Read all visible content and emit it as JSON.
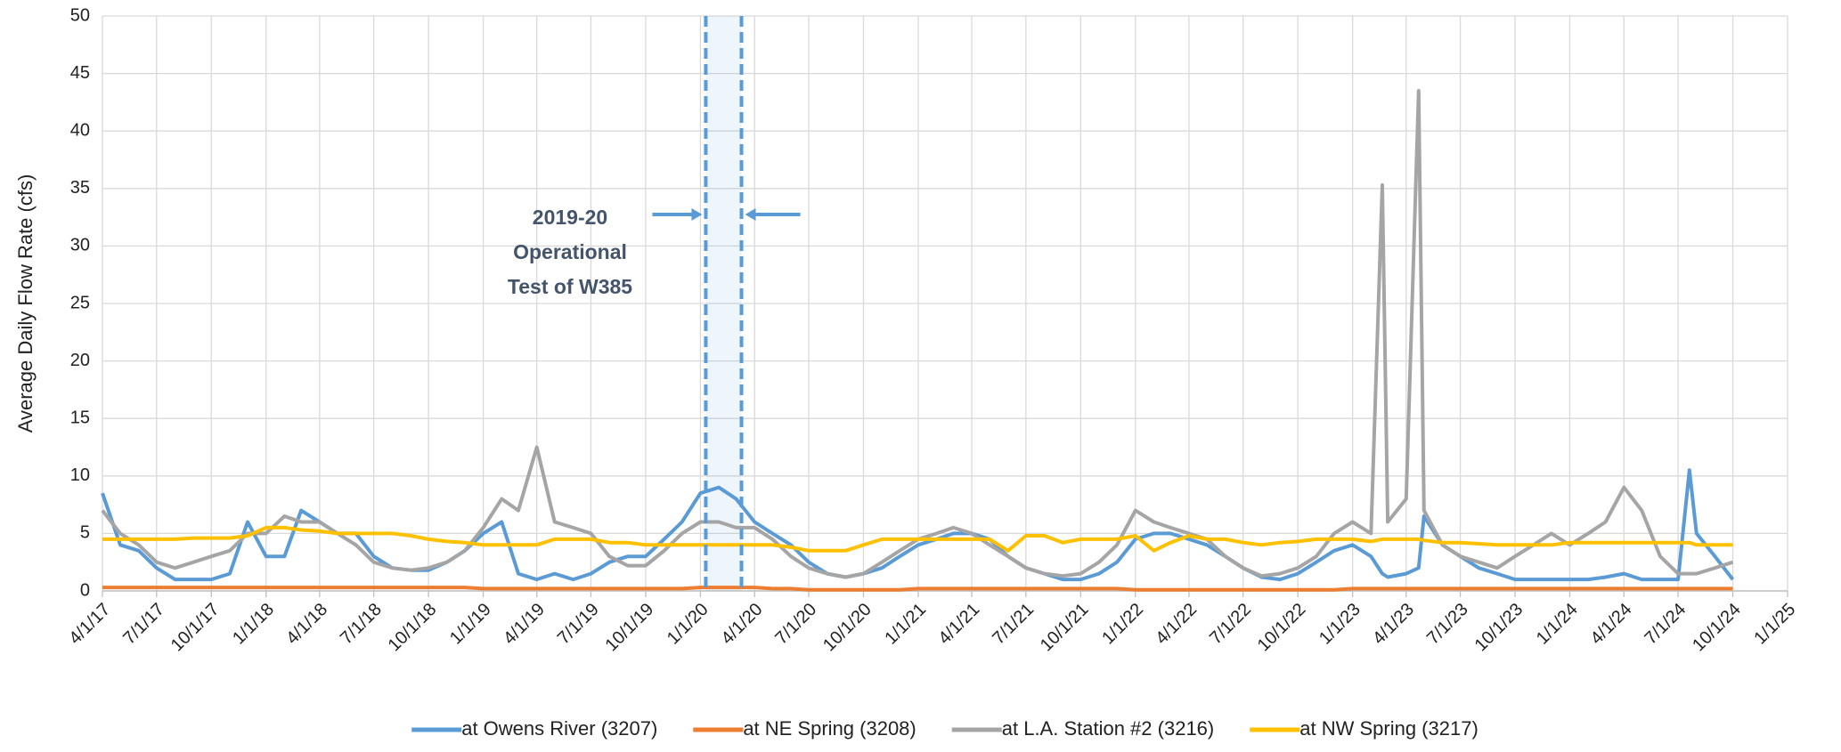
{
  "chart_data": {
    "type": "line",
    "y_label": "Average Daily Flow Rate (cfs)",
    "grid": true,
    "legend": "bottom",
    "ylim": [
      0,
      50
    ],
    "yticks": [
      0,
      5,
      10,
      15,
      20,
      25,
      30,
      35,
      40,
      45,
      50
    ],
    "xlim": [
      "4/1/17",
      "1/1/25"
    ],
    "xticks": [
      "4/1/17",
      "7/1/17",
      "10/1/17",
      "1/1/18",
      "4/1/18",
      "7/1/18",
      "10/1/18",
      "1/1/19",
      "4/1/19",
      "7/1/19",
      "10/1/19",
      "1/1/20",
      "4/1/20",
      "7/1/20",
      "10/1/20",
      "1/1/21",
      "4/1/21",
      "7/1/21",
      "10/1/21",
      "1/1/22",
      "4/1/22",
      "7/1/22",
      "10/1/22",
      "1/1/23",
      "4/1/23",
      "7/1/23",
      "10/1/23",
      "1/1/24",
      "4/1/24",
      "7/1/24",
      "10/1/24",
      "1/1/25"
    ],
    "x": [
      "4/1/17",
      "5/1/17",
      "6/1/17",
      "7/1/17",
      "8/1/17",
      "9/1/17",
      "10/1/17",
      "11/1/17",
      "12/1/17",
      "1/1/18",
      "2/1/18",
      "3/1/18",
      "4/1/18",
      "5/1/18",
      "6/1/18",
      "7/1/18",
      "8/1/18",
      "9/1/18",
      "10/1/18",
      "11/1/18",
      "12/1/18",
      "1/1/19",
      "2/1/19",
      "3/1/19",
      "4/1/19",
      "5/1/19",
      "6/1/19",
      "7/1/19",
      "8/1/19",
      "9/1/19",
      "10/1/19",
      "11/1/19",
      "12/1/19",
      "1/1/20",
      "2/1/20",
      "3/1/20",
      "4/1/20",
      "5/1/20",
      "6/1/20",
      "7/1/20",
      "8/1/20",
      "9/1/20",
      "10/1/20",
      "11/1/20",
      "12/1/20",
      "1/1/21",
      "2/1/21",
      "3/1/21",
      "4/1/21",
      "5/1/21",
      "6/1/21",
      "7/1/21",
      "8/1/21",
      "9/1/21",
      "10/1/21",
      "11/1/21",
      "12/1/21",
      "1/1/22",
      "2/1/22",
      "3/1/22",
      "4/1/22",
      "5/1/22",
      "6/1/22",
      "7/1/22",
      "8/1/22",
      "9/1/22",
      "10/1/22",
      "11/1/22",
      "12/1/22",
      "1/1/23",
      "2/1/23",
      "2/20/23",
      "3/1/23",
      "4/1/23",
      "4/22/23",
      "5/1/23",
      "6/1/23",
      "7/1/23",
      "8/1/23",
      "9/1/23",
      "10/1/23",
      "11/1/23",
      "12/1/23",
      "1/1/24",
      "2/1/24",
      "3/1/24",
      "4/1/24",
      "5/1/24",
      "6/1/24",
      "7/1/24",
      "7/20/24",
      "8/1/24",
      "9/1/24",
      "10/1/24"
    ],
    "series": [
      {
        "name": "at Owens River (3207)",
        "color": "#5b9bd5",
        "values": [
          8.5,
          4,
          3.5,
          2,
          1,
          1,
          1,
          1.5,
          6,
          3,
          3,
          7,
          6,
          5,
          5,
          3,
          2,
          1.8,
          1.8,
          2.5,
          3.5,
          5,
          6,
          1.5,
          1,
          1.5,
          1,
          1.5,
          2.5,
          3,
          3,
          4.5,
          6,
          8.5,
          9,
          8,
          6,
          5,
          4,
          2.5,
          1.5,
          1.2,
          1.5,
          2,
          3,
          4,
          4.5,
          5,
          5,
          4.5,
          3,
          2,
          1.5,
          1,
          1,
          1.5,
          2.5,
          4.5,
          5,
          5,
          4.5,
          4,
          3,
          2,
          1.2,
          1,
          1.5,
          2.5,
          3.5,
          4,
          3,
          1.5,
          1.2,
          1.5,
          2,
          6.5,
          4,
          3,
          2,
          1.5,
          1,
          1,
          1,
          1,
          1,
          1.2,
          1.5,
          1,
          1,
          1,
          10.5,
          5,
          3,
          1
        ]
      },
      {
        "name": "at NE Spring (3208)",
        "color": "#ed7d31",
        "values": [
          0.3,
          0.3,
          0.3,
          0.3,
          0.3,
          0.3,
          0.3,
          0.3,
          0.3,
          0.3,
          0.3,
          0.3,
          0.3,
          0.3,
          0.3,
          0.3,
          0.3,
          0.3,
          0.3,
          0.3,
          0.3,
          0.2,
          0.2,
          0.2,
          0.2,
          0.2,
          0.2,
          0.2,
          0.2,
          0.2,
          0.2,
          0.2,
          0.2,
          0.3,
          0.3,
          0.3,
          0.3,
          0.2,
          0.2,
          0.1,
          0.1,
          0.1,
          0.1,
          0.1,
          0.1,
          0.2,
          0.2,
          0.2,
          0.2,
          0.2,
          0.2,
          0.2,
          0.2,
          0.2,
          0.2,
          0.2,
          0.2,
          0.1,
          0.1,
          0.1,
          0.1,
          0.1,
          0.1,
          0.1,
          0.1,
          0.1,
          0.1,
          0.1,
          0.1,
          0.2,
          0.2,
          0.2,
          0.2,
          0.2,
          0.2,
          0.2,
          0.2,
          0.2,
          0.2,
          0.2,
          0.2,
          0.2,
          0.2,
          0.2,
          0.2,
          0.2,
          0.2,
          0.2,
          0.2,
          0.2,
          0.2,
          0.2,
          0.2,
          0.2
        ]
      },
      {
        "name": "at L.A. Station #2 (3216)",
        "color": "#a5a5a5",
        "values": [
          7,
          5,
          4,
          2.5,
          2,
          2.5,
          3,
          3.5,
          5,
          5,
          6.5,
          6,
          6,
          5,
          4,
          2.5,
          2,
          1.8,
          2,
          2.5,
          3.5,
          5.5,
          8,
          7,
          12.5,
          6,
          5.5,
          5,
          3,
          2.2,
          2.2,
          3.5,
          5,
          6,
          6,
          5.5,
          5.5,
          4.5,
          3,
          2,
          1.5,
          1.2,
          1.5,
          2.5,
          3.5,
          4.5,
          5,
          5.5,
          5,
          4,
          3,
          2,
          1.5,
          1.3,
          1.5,
          2.5,
          4,
          7,
          6,
          5.5,
          5,
          4.5,
          3,
          2,
          1.3,
          1.5,
          2,
          3,
          5,
          6,
          5,
          35.3,
          6,
          8,
          43.5,
          7,
          4,
          3,
          2.5,
          2,
          3,
          4,
          5,
          4,
          5,
          6,
          9,
          7,
          3,
          1.5,
          1.5,
          1.5,
          2,
          2.5
        ]
      },
      {
        "name": "at NW Spring (3217)",
        "color": "#ffc000",
        "values": [
          4.5,
          4.5,
          4.5,
          4.5,
          4.5,
          4.6,
          4.6,
          4.6,
          4.8,
          5.5,
          5.5,
          5.3,
          5.2,
          5,
          5,
          5,
          5,
          4.8,
          4.5,
          4.3,
          4.2,
          4,
          4,
          4,
          4,
          4.5,
          4.5,
          4.5,
          4.2,
          4.2,
          4,
          4,
          4,
          4,
          4,
          4,
          4,
          4,
          3.8,
          3.5,
          3.5,
          3.5,
          4,
          4.5,
          4.5,
          4.5,
          4.5,
          4.5,
          4.5,
          4.5,
          3.5,
          4.8,
          4.8,
          4.2,
          4.5,
          4.5,
          4.5,
          4.8,
          3.5,
          4.2,
          4.8,
          4.5,
          4.5,
          4.2,
          4,
          4.2,
          4.3,
          4.5,
          4.5,
          4.5,
          4.3,
          4.5,
          4.5,
          4.5,
          4.5,
          4.4,
          4.2,
          4.2,
          4.1,
          4,
          4,
          4,
          4,
          4.2,
          4.2,
          4.2,
          4.2,
          4.2,
          4.2,
          4.2,
          4.2,
          4,
          4,
          4
        ]
      }
    ],
    "annotation": {
      "text": [
        "2019-20",
        "Operational",
        "Test of W385"
      ],
      "start": "1/10/20",
      "end": "3/10/20",
      "color": "#5b9bd5"
    }
  }
}
